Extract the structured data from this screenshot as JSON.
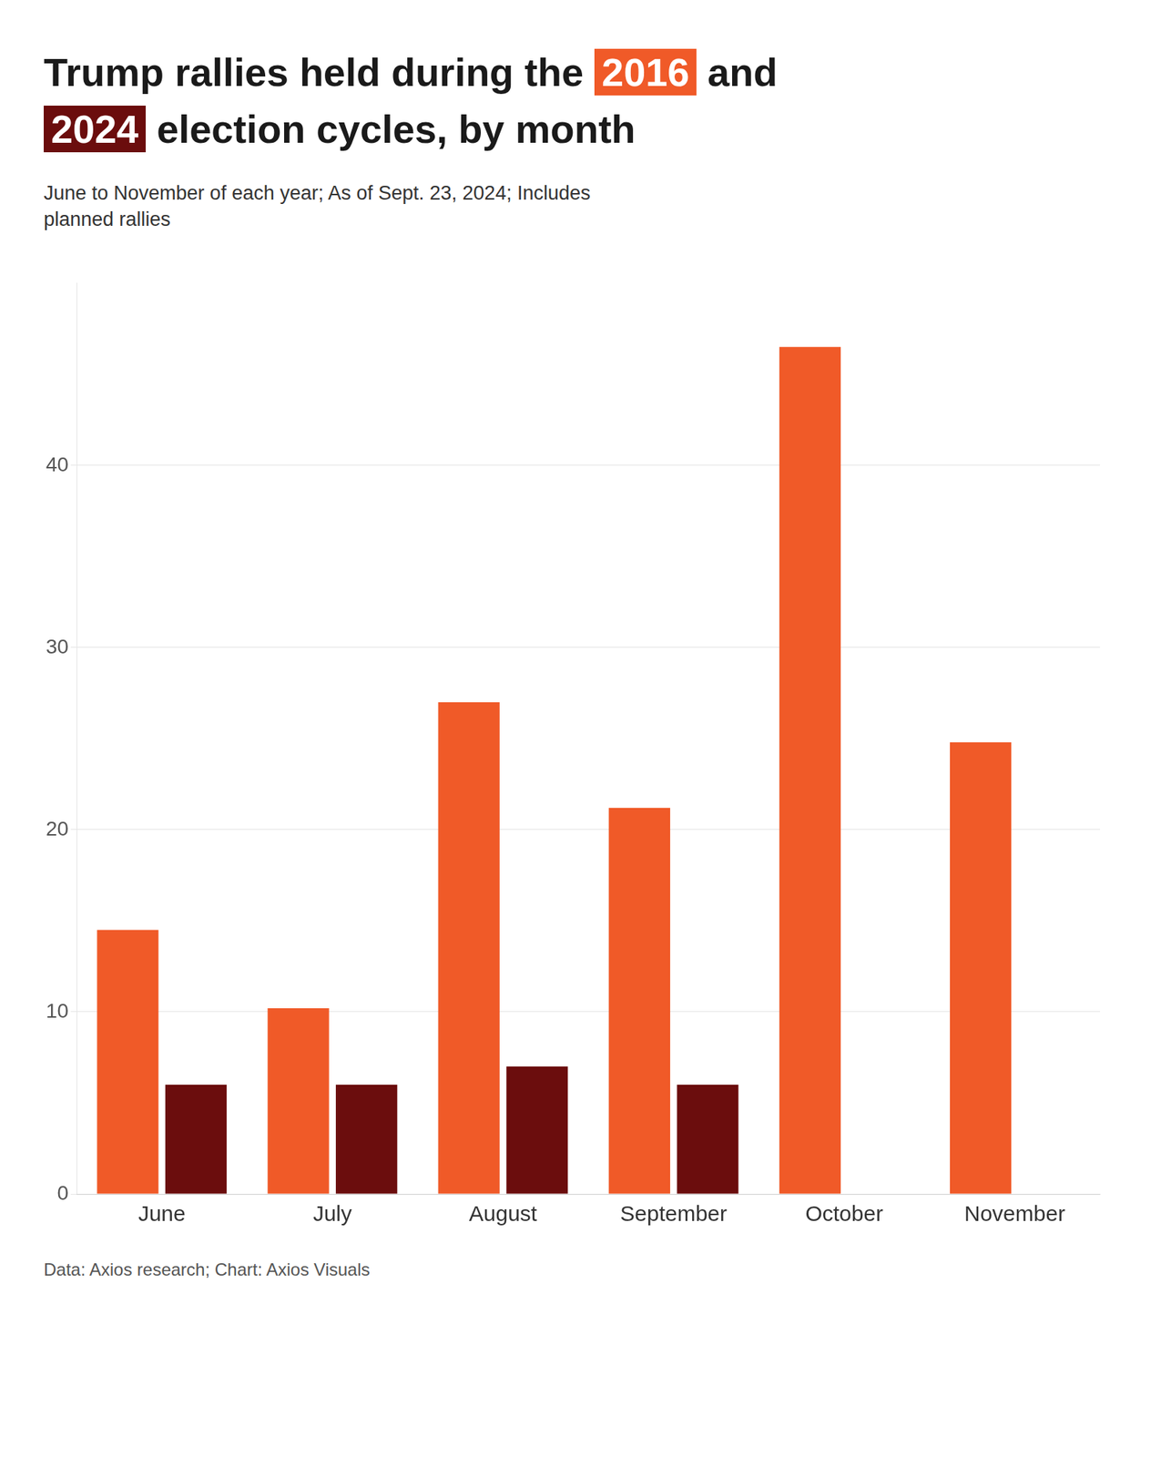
{
  "chart_data": {
    "type": "bar",
    "title": "Trump rallies held during the 2016 and\n2024 election cycles, by month",
    "subtitle": "June to November of each year; As of Sept. 23, 2024; Includes\nplanned rallies",
    "footnote": "Data: Axios research; Chart: Axios Visuals",
    "categories": [
      "June",
      "July",
      "August",
      "September",
      "October",
      "November"
    ],
    "series": [
      {
        "name": "2016",
        "color": "#f05a28",
        "values": [
          14.5,
          10.2,
          27.0,
          21.2,
          46.5,
          24.8
        ]
      },
      {
        "name": "2024",
        "color": "#6b0d0d",
        "values": [
          6.0,
          6.0,
          7.0,
          6.0,
          0,
          0
        ]
      }
    ],
    "ylim": [
      0,
      50
    ],
    "yticks": [
      0,
      10,
      20,
      30,
      40
    ],
    "grid": true
  }
}
